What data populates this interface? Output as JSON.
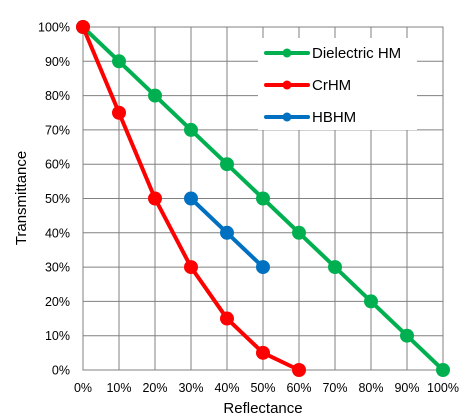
{
  "chart_data": {
    "type": "line",
    "title": "",
    "xlabel": "Reflectance",
    "ylabel": "Transmittance",
    "xlim": [
      0,
      100
    ],
    "ylim": [
      0,
      100
    ],
    "grid": true,
    "legend_placement": "top-right",
    "x_ticks": [
      "0%",
      "10%",
      "20%",
      "30%",
      "40%",
      "50%",
      "60%",
      "70%",
      "80%",
      "90%",
      "100%"
    ],
    "y_ticks": [
      "0%",
      "10%",
      "20%",
      "30%",
      "40%",
      "50%",
      "60%",
      "70%",
      "80%",
      "90%",
      "100%"
    ],
    "series": [
      {
        "name": "Dielectric HM",
        "color": "#00b050",
        "x": [
          0,
          10,
          20,
          30,
          40,
          50,
          60,
          70,
          80,
          90,
          100
        ],
        "y": [
          100,
          90,
          80,
          70,
          60,
          50,
          40,
          30,
          20,
          10,
          0
        ]
      },
      {
        "name": "CrHM",
        "color": "#ff0000",
        "x": [
          0,
          10,
          20,
          30,
          40,
          50,
          60
        ],
        "y": [
          100,
          75,
          50,
          30,
          15,
          5,
          0
        ]
      },
      {
        "name": "HBHM",
        "color": "#0070c0",
        "x": [
          30,
          40,
          50
        ],
        "y": [
          50,
          40,
          30
        ]
      }
    ]
  }
}
